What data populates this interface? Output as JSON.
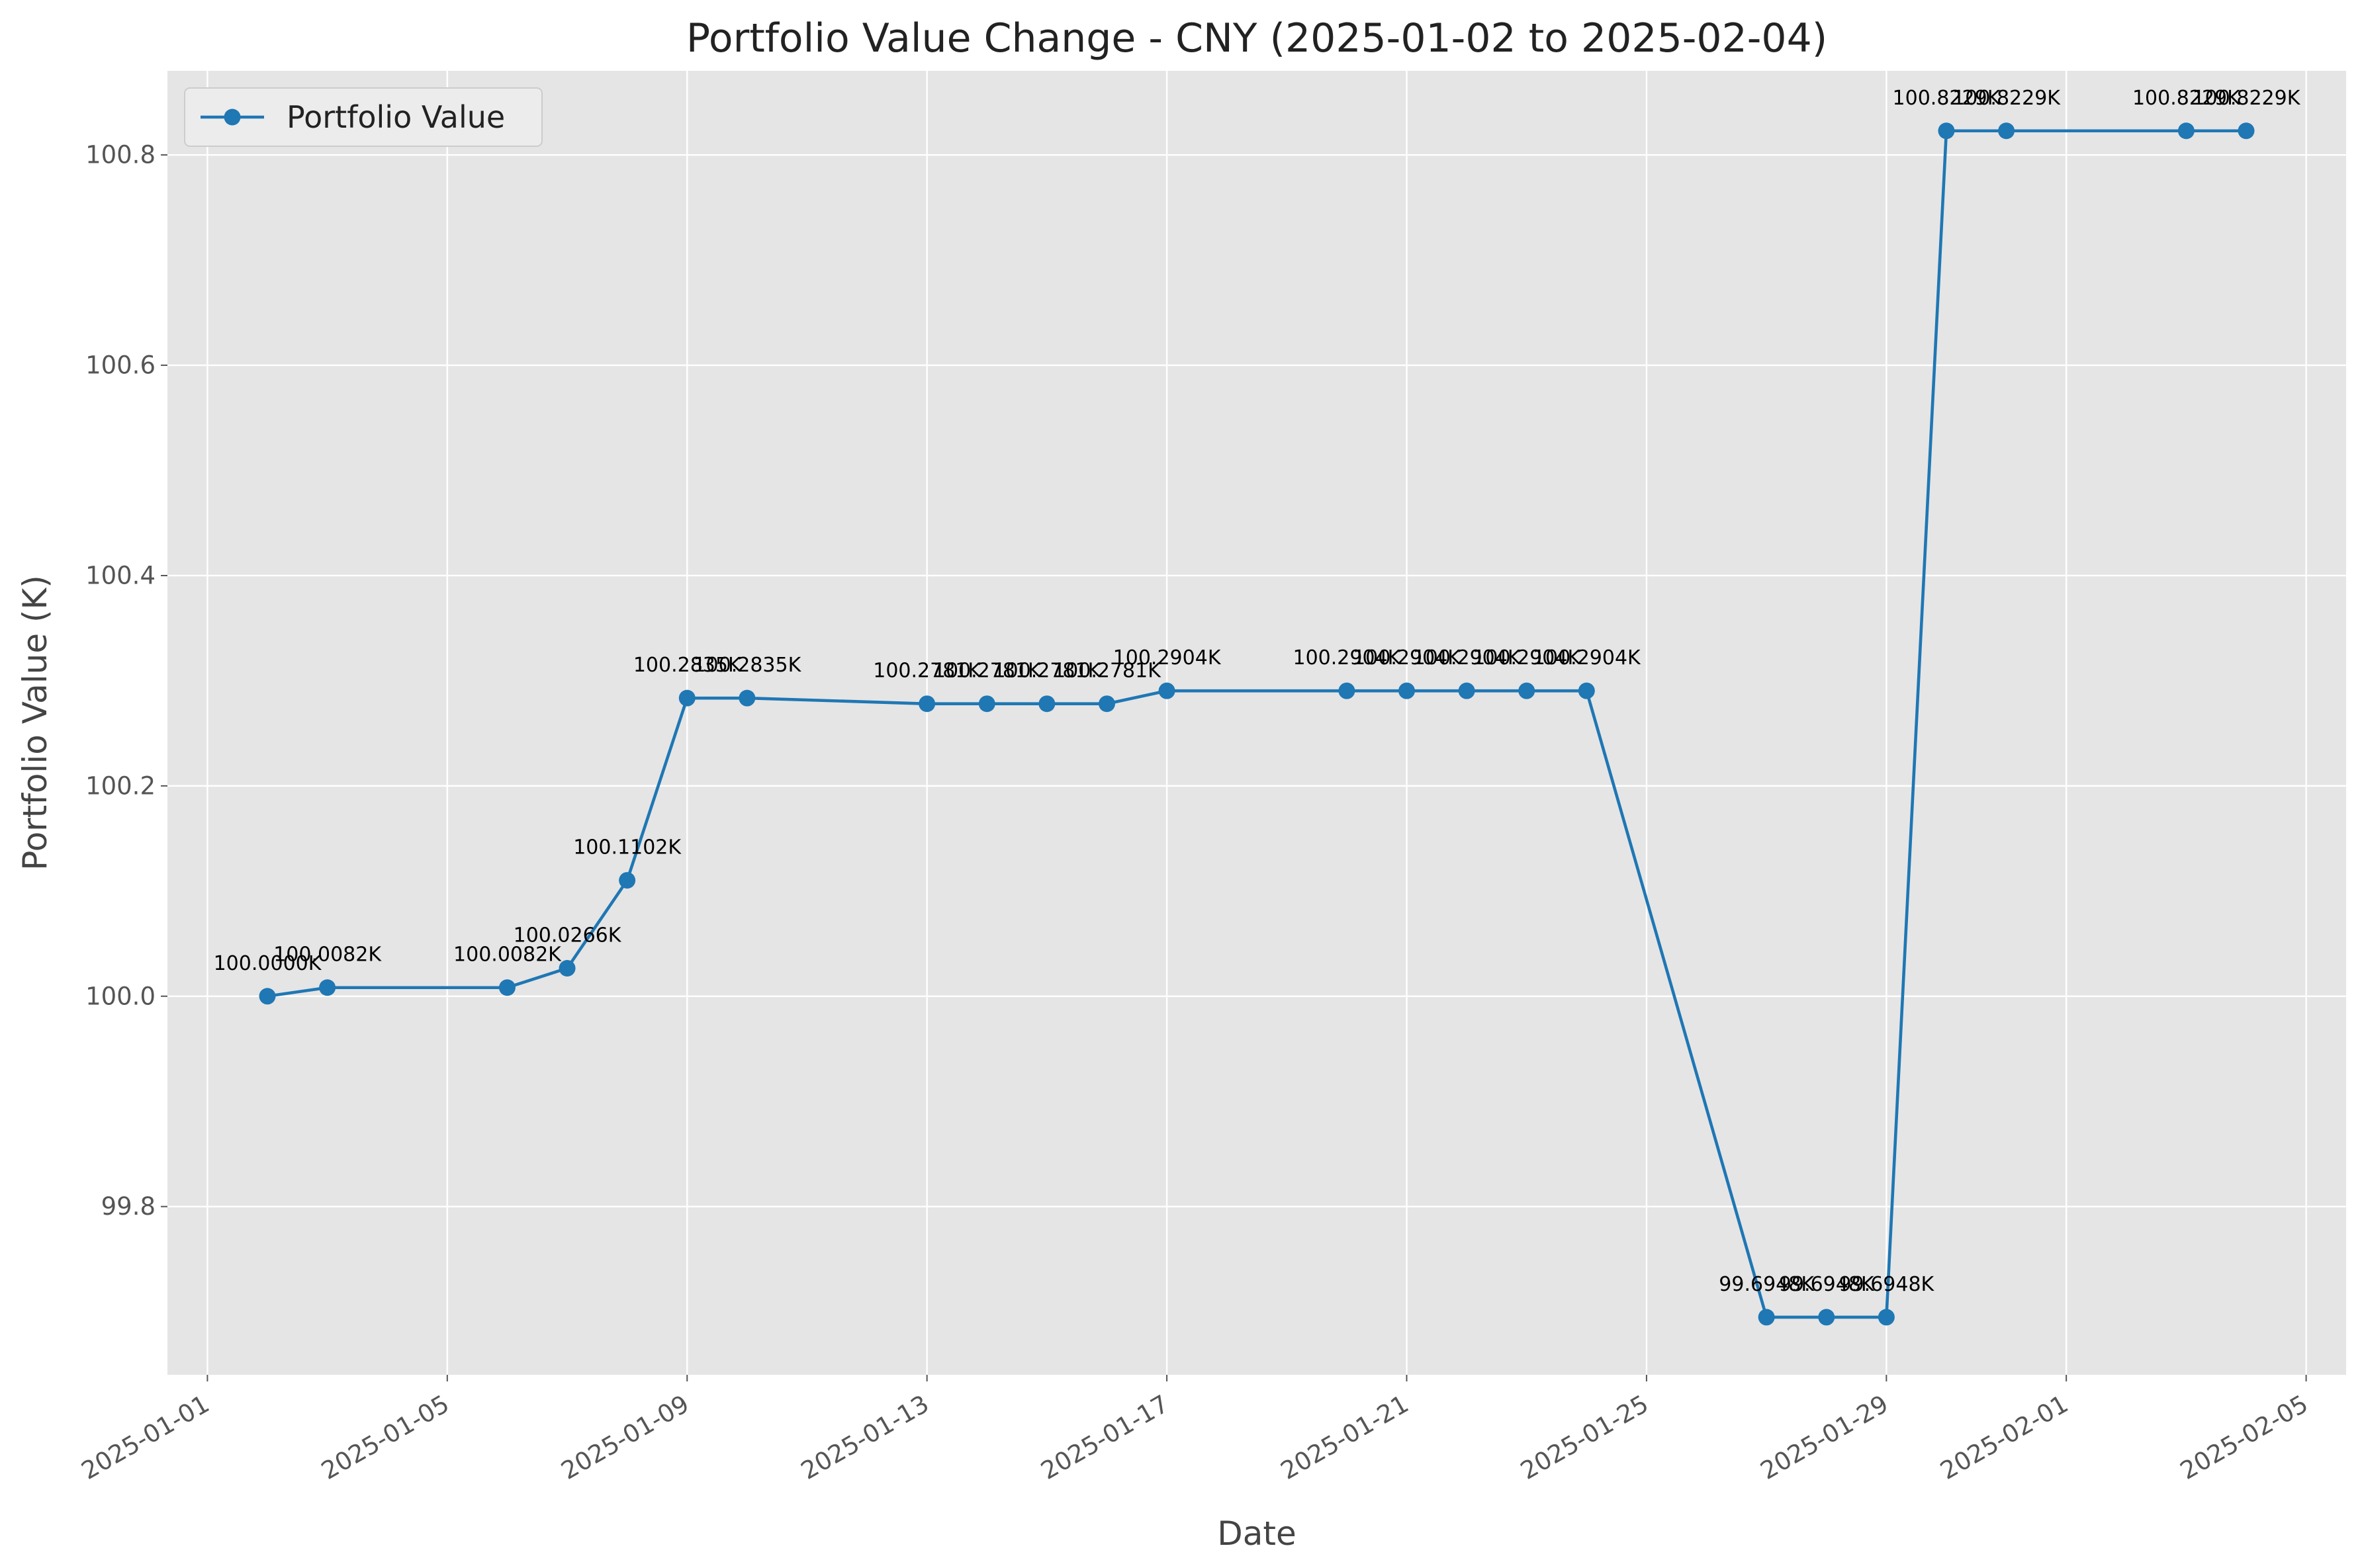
{
  "chart_data": {
    "type": "line",
    "title": "Portfolio Value Change - CNY (2025-01-02 to 2025-02-04)",
    "xlabel": "Date",
    "ylabel": "Portfolio Value (K)",
    "x_axis_type": "date",
    "xlim": [
      "2024-12-31T08:00",
      "2025-02-05T16:00"
    ],
    "ylim": [
      99.64,
      100.88
    ],
    "x_ticks": [
      "2025-01-01",
      "2025-01-05",
      "2025-01-09",
      "2025-01-13",
      "2025-01-17",
      "2025-01-21",
      "2025-01-25",
      "2025-01-29",
      "2025-02-01",
      "2025-02-05"
    ],
    "y_ticks": [
      99.8,
      100.0,
      100.2,
      100.4,
      100.6,
      100.8
    ],
    "y_tick_labels": [
      "99.8",
      "100.0",
      "100.2",
      "100.4",
      "100.6",
      "100.8"
    ],
    "grid": true,
    "background": "#e5e5e5",
    "line_color": "#1f77b4",
    "legend_position": "top-left",
    "series": [
      {
        "name": "Portfolio Value",
        "x": [
          "2025-01-02",
          "2025-01-03",
          "2025-01-06",
          "2025-01-07",
          "2025-01-08",
          "2025-01-09",
          "2025-01-10",
          "2025-01-13",
          "2025-01-14",
          "2025-01-15",
          "2025-01-16",
          "2025-01-17",
          "2025-01-20",
          "2025-01-21",
          "2025-01-22",
          "2025-01-23",
          "2025-01-24",
          "2025-01-27",
          "2025-01-28",
          "2025-01-29",
          "2025-01-30",
          "2025-01-31",
          "2025-02-03",
          "2025-02-04"
        ],
        "values": [
          100.0,
          100.0082,
          100.0082,
          100.0266,
          100.1102,
          100.2835,
          100.2835,
          100.2781,
          100.2781,
          100.2781,
          100.2781,
          100.2904,
          100.2904,
          100.2904,
          100.2904,
          100.2904,
          100.2904,
          99.6948,
          99.6948,
          99.6948,
          100.8229,
          100.8229,
          100.8229,
          100.8229
        ],
        "labels": [
          "100.0000K",
          "100.0082K",
          "100.0082K",
          "100.0266K",
          "100.1102K",
          "100.2835K",
          "100.2835K",
          "100.2781K",
          "100.2781K",
          "100.2781K",
          "100.2781K",
          "100.2904K",
          "100.2904K",
          "100.2904K",
          "100.2904K",
          "100.2904K",
          "100.2904K",
          "99.6948K",
          "99.6948K",
          "99.6948K",
          "100.8229K",
          "100.8229K",
          "100.8229K",
          "100.8229K"
        ]
      }
    ]
  }
}
